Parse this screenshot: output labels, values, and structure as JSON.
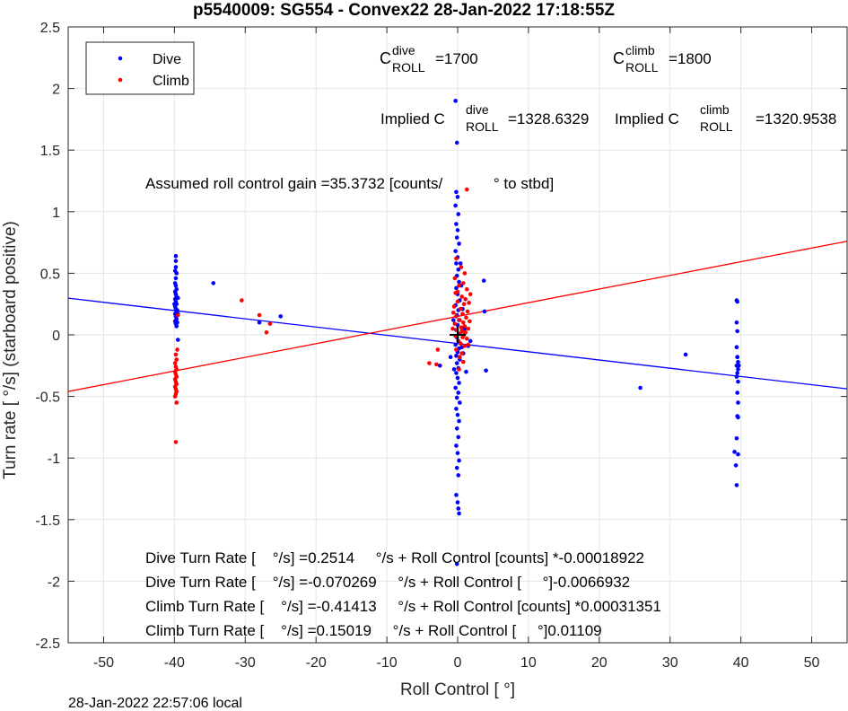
{
  "chart_data": {
    "type": "scatter",
    "title": "p5540009: SG554 - Convex22 28-Jan-2022 17:18:55Z",
    "xlabel": "Roll Control [   °]",
    "ylabel": "Turn rate [   °/s] (starboard positive)",
    "xlim": [
      -55,
      55
    ],
    "ylim": [
      -2.5,
      2.5
    ],
    "xticks": [
      -50,
      -40,
      -30,
      -20,
      -10,
      0,
      10,
      20,
      30,
      40,
      50
    ],
    "yticks": [
      -2.5,
      -2,
      -1.5,
      -1,
      -0.5,
      0,
      0.5,
      1,
      1.5,
      2,
      2.5
    ],
    "grid": true,
    "legend_position": "top-left",
    "footer": "28-Jan-2022 22:57:06 local",
    "series": [
      {
        "name": "Dive",
        "color": "#0000ff",
        "points": [
          [
            -39.8,
            0.64
          ],
          [
            -39.8,
            0.6
          ],
          [
            -39.8,
            0.55
          ],
          [
            -39.9,
            0.52
          ],
          [
            -39.7,
            0.5
          ],
          [
            -39.8,
            0.46
          ],
          [
            -39.9,
            0.42
          ],
          [
            -39.8,
            0.4
          ],
          [
            -39.7,
            0.37
          ],
          [
            -39.9,
            0.35
          ],
          [
            -39.8,
            0.33
          ],
          [
            -39.7,
            0.31
          ],
          [
            -39.9,
            0.29
          ],
          [
            -39.8,
            0.27
          ],
          [
            -39.7,
            0.25
          ],
          [
            -39.9,
            0.23
          ],
          [
            -39.8,
            0.21
          ],
          [
            -39.7,
            0.19
          ],
          [
            -39.9,
            0.17
          ],
          [
            -39.8,
            0.15
          ],
          [
            -39.7,
            0.13
          ],
          [
            -39.9,
            0.11
          ],
          [
            -39.8,
            0.09
          ],
          [
            -39.7,
            0.07
          ],
          [
            -39.6,
            0.2
          ],
          [
            -40.0,
            0.25
          ],
          [
            -39.5,
            0.3
          ],
          [
            -39.6,
            0.1
          ],
          [
            -39.5,
            -0.04
          ],
          [
            -39.5,
            0.17
          ],
          [
            -34.5,
            0.42
          ],
          [
            -25.0,
            0.15
          ],
          [
            -28.0,
            0.1
          ],
          [
            -0.3,
            1.9
          ],
          [
            -0.1,
            1.56
          ],
          [
            -0.2,
            1.16
          ],
          [
            0.0,
            1.12
          ],
          [
            -0.3,
            1.05
          ],
          [
            0.1,
            0.98
          ],
          [
            -0.2,
            0.9
          ],
          [
            0.0,
            0.85
          ],
          [
            -0.1,
            0.79
          ],
          [
            0.2,
            0.74
          ],
          [
            -0.3,
            0.68
          ],
          [
            0.0,
            0.63
          ],
          [
            -0.2,
            0.58
          ],
          [
            0.1,
            0.53
          ],
          [
            -0.1,
            0.48
          ],
          [
            0.2,
            0.43
          ],
          [
            -0.2,
            0.38
          ],
          [
            0.0,
            0.33
          ],
          [
            0.3,
            0.28
          ],
          [
            -0.3,
            0.24
          ],
          [
            0.1,
            0.2
          ],
          [
            -0.1,
            0.16
          ],
          [
            0.2,
            0.12
          ],
          [
            0.0,
            0.08
          ],
          [
            -0.2,
            0.04
          ],
          [
            0.3,
            0.01
          ],
          [
            -0.1,
            -0.02
          ],
          [
            0.1,
            -0.05
          ],
          [
            -0.3,
            -0.08
          ],
          [
            0.2,
            -0.11
          ],
          [
            0.0,
            -0.14
          ],
          [
            -0.2,
            -0.17
          ],
          [
            0.3,
            -0.2
          ],
          [
            -0.1,
            -0.23
          ],
          [
            0.1,
            -0.27
          ],
          [
            -0.2,
            -0.31
          ],
          [
            0.0,
            -0.35
          ],
          [
            0.2,
            -0.39
          ],
          [
            -0.3,
            -0.43
          ],
          [
            0.1,
            -0.47
          ],
          [
            -0.1,
            -0.51
          ],
          [
            0.3,
            -0.55
          ],
          [
            -0.2,
            -0.6
          ],
          [
            0.0,
            -0.65
          ],
          [
            0.2,
            -0.7
          ],
          [
            -0.1,
            -0.76
          ],
          [
            0.1,
            -0.83
          ],
          [
            -0.2,
            -0.9
          ],
          [
            0.0,
            -0.96
          ],
          [
            0.2,
            -1.02
          ],
          [
            -0.1,
            -1.08
          ],
          [
            0.1,
            -1.14
          ],
          [
            -0.2,
            -1.3
          ],
          [
            0.0,
            -1.36
          ],
          [
            0.1,
            -1.41
          ],
          [
            0.2,
            -1.45
          ],
          [
            -0.1,
            -1.86
          ],
          [
            0.4,
            0.58
          ],
          [
            0.5,
            0.4
          ],
          [
            0.6,
            -0.1
          ],
          [
            0.8,
            -0.15
          ],
          [
            1.2,
            -0.3
          ],
          [
            1.8,
            -0.05
          ],
          [
            -0.5,
            -0.28
          ],
          [
            -0.6,
            0.12
          ],
          [
            0.7,
            0.21
          ],
          [
            1.0,
            0.05
          ],
          [
            1.5,
            -0.09
          ],
          [
            -1.0,
            -0.18
          ],
          [
            -2.5,
            -0.25
          ],
          [
            3.7,
            0.44
          ],
          [
            3.8,
            0.19
          ],
          [
            4.0,
            -0.29
          ],
          [
            25.8,
            -0.43
          ],
          [
            32.2,
            -0.16
          ],
          [
            39.4,
            0.28
          ],
          [
            39.5,
            0.27
          ],
          [
            39.4,
            0.1
          ],
          [
            39.5,
            0.03
          ],
          [
            39.4,
            -0.1
          ],
          [
            39.5,
            -0.18
          ],
          [
            39.6,
            -0.22
          ],
          [
            39.4,
            -0.25
          ],
          [
            39.6,
            -0.28
          ],
          [
            39.5,
            -0.31
          ],
          [
            39.4,
            -0.34
          ],
          [
            39.6,
            -0.38
          ],
          [
            39.5,
            -0.47
          ],
          [
            39.6,
            -0.55
          ],
          [
            39.5,
            -0.66
          ],
          [
            39.6,
            -0.67
          ],
          [
            39.4,
            -0.84
          ],
          [
            39.1,
            -0.95
          ],
          [
            39.6,
            -0.97
          ],
          [
            39.3,
            -1.06
          ],
          [
            39.4,
            -1.22
          ],
          [
            39.5,
            -0.18
          ],
          [
            39.7,
            -0.25
          ]
        ]
      },
      {
        "name": "Climb",
        "color": "#ff0000",
        "points": [
          [
            -39.8,
            -0.16
          ],
          [
            -39.7,
            -0.2
          ],
          [
            -39.9,
            -0.23
          ],
          [
            -39.8,
            -0.26
          ],
          [
            -39.7,
            -0.28
          ],
          [
            -39.9,
            -0.3
          ],
          [
            -39.8,
            -0.32
          ],
          [
            -39.7,
            -0.34
          ],
          [
            -39.9,
            -0.36
          ],
          [
            -39.8,
            -0.38
          ],
          [
            -39.7,
            -0.4
          ],
          [
            -39.9,
            -0.42
          ],
          [
            -39.8,
            -0.44
          ],
          [
            -39.7,
            -0.46
          ],
          [
            -39.8,
            -0.48
          ],
          [
            -39.9,
            -0.5
          ],
          [
            -39.7,
            -0.55
          ],
          [
            -39.8,
            -0.87
          ],
          [
            -39.5,
            0.16
          ],
          [
            -39.6,
            -0.12
          ],
          [
            -30.5,
            0.28
          ],
          [
            -28.0,
            0.16
          ],
          [
            -26.5,
            0.09
          ],
          [
            -27.0,
            0.02
          ],
          [
            1.3,
            1.18
          ],
          [
            -0.2,
            0.62
          ],
          [
            0.5,
            0.55
          ],
          [
            1.0,
            0.5
          ],
          [
            -0.4,
            0.46
          ],
          [
            0.8,
            0.42
          ],
          [
            0.2,
            0.4
          ],
          [
            1.3,
            0.37
          ],
          [
            -0.3,
            0.34
          ],
          [
            0.6,
            0.31
          ],
          [
            1.1,
            0.29
          ],
          [
            0.0,
            0.27
          ],
          [
            0.9,
            0.25
          ],
          [
            -0.5,
            0.23
          ],
          [
            0.4,
            0.21
          ],
          [
            1.4,
            0.19
          ],
          [
            0.7,
            0.17
          ],
          [
            -0.2,
            0.15
          ],
          [
            1.2,
            0.14
          ],
          [
            0.3,
            0.12
          ],
          [
            0.8,
            0.1
          ],
          [
            -0.4,
            0.09
          ],
          [
            1.0,
            0.07
          ],
          [
            0.5,
            0.06
          ],
          [
            1.5,
            0.05
          ],
          [
            -0.1,
            0.04
          ],
          [
            0.6,
            0.03
          ],
          [
            1.1,
            0.02
          ],
          [
            0.2,
            0.01
          ],
          [
            0.9,
            0.0
          ],
          [
            -0.3,
            -0.01
          ],
          [
            0.7,
            -0.02
          ],
          [
            1.3,
            -0.03
          ],
          [
            0.1,
            -0.05
          ],
          [
            0.4,
            -0.07
          ],
          [
            1.0,
            -0.09
          ],
          [
            -0.2,
            -0.12
          ],
          [
            0.6,
            -0.15
          ],
          [
            0.3,
            -0.18
          ],
          [
            0.8,
            -0.22
          ],
          [
            1.6,
            0.26
          ],
          [
            1.7,
            0.11
          ],
          [
            1.8,
            0.33
          ],
          [
            1.5,
            -0.08
          ],
          [
            -0.6,
            0.18
          ],
          [
            -0.7,
            0.05
          ],
          [
            0.0,
            0.35
          ],
          [
            0.2,
            -0.28
          ],
          [
            -3.0,
            -0.24
          ],
          [
            -4.0,
            -0.23
          ],
          [
            -2.8,
            -0.12
          ]
        ]
      }
    ],
    "fit_lines": [
      {
        "series": "Dive",
        "color": "#0000ff",
        "slope": -0.0066932,
        "intercept": -0.070269
      },
      {
        "series": "Climb",
        "color": "#ff0000",
        "slope": 0.01109,
        "intercept": 0.15019
      }
    ],
    "marker": {
      "symbol": "+",
      "x": 0,
      "y": 0
    }
  },
  "annotations": {
    "c_dive_c": "C",
    "c_dive_sup": "dive",
    "c_dive_sub": "ROLL",
    "c_dive_val": "=1700",
    "c_climb_c": "C",
    "c_climb_sup": "climb",
    "c_climb_sub": "ROLL",
    "c_climb_val": "=1800",
    "imp_dive_pre": "Implied C",
    "imp_dive_sup": "dive",
    "imp_dive_sub": "ROLL",
    "imp_dive_val": "=1328.6329",
    "imp_climb_pre": "Implied C",
    "imp_climb_sup": "climb",
    "imp_climb_sub": "ROLL",
    "imp_climb_val": "=1320.9538",
    "gain": "Assumed roll control gain =35.3732 [counts/            ° to stbd]",
    "fit1": "Dive Turn Rate [    °/s] =0.2514     °/s + Roll Control [counts] *-0.00018922",
    "fit2": "Dive Turn Rate [    °/s] =-0.070269     °/s + Roll Control [     °]-0.0066932",
    "fit3": "Climb Turn Rate [    °/s] =-0.41413     °/s + Roll Control [counts] *0.00031351",
    "fit4": "Climb Turn Rate [    °/s] =0.15019     °/s + Roll Control [     °]0.01109"
  }
}
